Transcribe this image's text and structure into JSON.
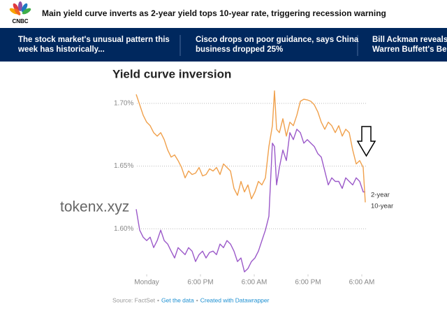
{
  "header": {
    "logo": "CNBC",
    "title": "Main yield curve inverts as 2-year yield tops 10-year rate, triggering recession warning"
  },
  "headlines": [
    [
      "The stock market's unusual pattern this",
      "week has historically..."
    ],
    [
      "Cisco drops on poor guidance, says China",
      "business dropped 25%"
    ],
    [
      "Bill Ackman reveals a",
      "Warren Buffett's Berl"
    ]
  ],
  "chart_data": {
    "type": "line",
    "title": "Yield curve inversion",
    "x": [
      -2.34,
      -1.56,
      -0.78,
      0,
      0.78,
      1.56,
      2.34,
      3.12,
      3.9,
      4.68,
      5.45,
      6.23,
      7.01,
      7.79,
      8.57,
      9.35,
      10.13,
      10.91,
      11.69,
      12.47,
      13.25,
      14.03,
      14.81,
      15.58,
      16.36,
      17.14,
      17.92,
      18.7,
      19.48,
      20.26,
      21.04,
      21.82,
      22.6,
      23.38,
      24.16,
      24.94,
      25.71,
      26.49,
      27.27,
      28.05,
      28.52,
      28.99,
      29.61,
      30.39,
      31.17,
      31.95,
      32.73,
      33.51,
      34.29,
      35.06,
      35.84,
      36.62,
      37.4,
      38.18,
      38.96,
      39.74,
      40.52,
      41.3,
      42.08,
      42.86,
      43.64,
      44.42,
      45.19,
      45.97,
      46.75,
      47.53,
      48.31,
      48.78
    ],
    "series": [
      {
        "name": "2-year",
        "color": "#9b59c9",
        "values": [
          1.6156,
          1.5989,
          1.5933,
          1.5906,
          1.5933,
          1.585,
          1.5906,
          1.5989,
          1.5906,
          1.5878,
          1.5822,
          1.5767,
          1.585,
          1.5822,
          1.5794,
          1.585,
          1.5822,
          1.5739,
          1.5794,
          1.5822,
          1.5767,
          1.5811,
          1.5822,
          1.5794,
          1.5878,
          1.585,
          1.5906,
          1.5878,
          1.5822,
          1.5739,
          1.5767,
          1.5656,
          1.5683,
          1.5739,
          1.5767,
          1.5822,
          1.5906,
          1.5989,
          1.61,
          1.6683,
          1.6656,
          1.635,
          1.6489,
          1.6628,
          1.6544,
          1.6767,
          1.6711,
          1.6794,
          1.6767,
          1.6683,
          1.6711,
          1.6683,
          1.6656,
          1.66,
          1.6572,
          1.6461,
          1.635,
          1.6406,
          1.6378,
          1.6378,
          1.6322,
          1.6406,
          1.6378,
          1.635,
          1.6406,
          1.6378,
          1.6294,
          1.6294
        ]
      },
      {
        "name": "10-year",
        "color": "#f0a04b",
        "values": [
          1.7072,
          1.6989,
          1.6906,
          1.685,
          1.6822,
          1.6767,
          1.6739,
          1.6767,
          1.6711,
          1.6628,
          1.6572,
          1.6589,
          1.6544,
          1.6489,
          1.6406,
          1.6461,
          1.6433,
          1.6444,
          1.6489,
          1.6422,
          1.6433,
          1.6478,
          1.6461,
          1.6489,
          1.6433,
          1.6517,
          1.6489,
          1.6461,
          1.6322,
          1.6267,
          1.6378,
          1.6294,
          1.635,
          1.6239,
          1.6294,
          1.6378,
          1.635,
          1.6406,
          1.6656,
          1.6822,
          1.71,
          1.6794,
          1.6767,
          1.6878,
          1.6739,
          1.685,
          1.6822,
          1.6906,
          1.7017,
          1.7033,
          1.7028,
          1.7017,
          1.6989,
          1.6933,
          1.685,
          1.6794,
          1.685,
          1.6822,
          1.6767,
          1.6822,
          1.6739,
          1.6794,
          1.6767,
          1.6628,
          1.6517,
          1.6544,
          1.6489,
          1.6211
        ]
      }
    ],
    "xlim": [
      -2.5,
      49
    ],
    "xticks": [
      {
        "value": 0,
        "label": "Monday"
      },
      {
        "value": 12,
        "label": "6:00 PM"
      },
      {
        "value": 24,
        "label": "6:00 AM"
      },
      {
        "value": 36,
        "label": "6:00 PM"
      },
      {
        "value": 48,
        "label": "6:00 AM"
      }
    ],
    "ylim": [
      1.562,
      1.712
    ],
    "yticks": [
      {
        "value": 1.6,
        "label": "1.60%"
      },
      {
        "value": 1.65,
        "label": "1.65%"
      },
      {
        "value": 1.7,
        "label": "1.70%"
      }
    ],
    "grid": true
  },
  "footer": {
    "source": "Source: FactSet",
    "separator": "•",
    "links": [
      "Get the data",
      "Created with Datawrapper"
    ]
  },
  "watermark": "tokenx.xyz"
}
